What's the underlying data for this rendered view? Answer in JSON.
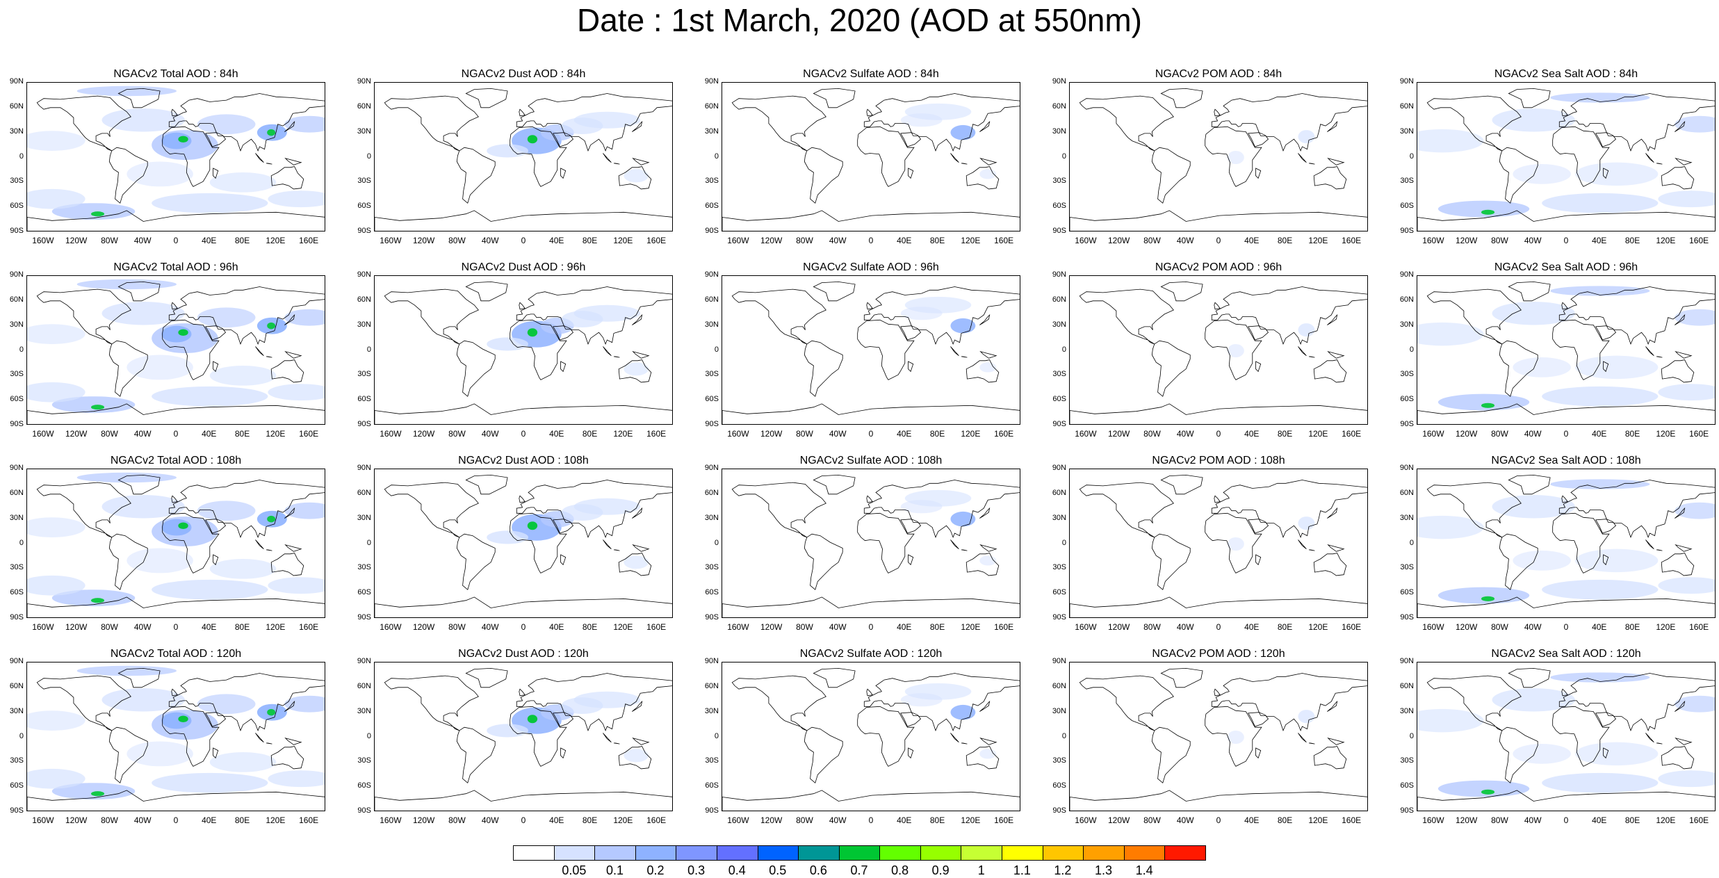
{
  "title": "Date : 1st March, 2020 (AOD at 550nm)",
  "lat_labels": [
    "90N",
    "60N",
    "30N",
    "0",
    "30S",
    "60S",
    "90S"
  ],
  "lon_labels": [
    "160W",
    "120W",
    "80W",
    "40W",
    "0",
    "40E",
    "80E",
    "120E",
    "160E"
  ],
  "panels": [
    {
      "title": "NGACv2 Total AOD : 84h",
      "species": "total"
    },
    {
      "title": "NGACv2 Dust AOD : 84h",
      "species": "dust"
    },
    {
      "title": "NGACv2 Sulfate AOD : 84h",
      "species": "sulfate"
    },
    {
      "title": "NGACv2 POM AOD : 84h",
      "species": "pom"
    },
    {
      "title": "NGACv2 Sea Salt AOD : 84h",
      "species": "seasalt"
    },
    {
      "title": "NGACv2 Total AOD : 96h",
      "species": "total"
    },
    {
      "title": "NGACv2 Dust AOD : 96h",
      "species": "dust"
    },
    {
      "title": "NGACv2 Sulfate AOD : 96h",
      "species": "sulfate"
    },
    {
      "title": "NGACv2 POM AOD : 96h",
      "species": "pom"
    },
    {
      "title": "NGACv2 Sea Salt AOD : 96h",
      "species": "seasalt"
    },
    {
      "title": "NGACv2 Total AOD : 108h",
      "species": "total"
    },
    {
      "title": "NGACv2 Dust AOD : 108h",
      "species": "dust"
    },
    {
      "title": "NGACv2 Sulfate AOD : 108h",
      "species": "sulfate"
    },
    {
      "title": "NGACv2 POM AOD : 108h",
      "species": "pom"
    },
    {
      "title": "NGACv2 Sea Salt AOD : 108h",
      "species": "seasalt"
    },
    {
      "title": "NGACv2 Total AOD : 120h",
      "species": "total"
    },
    {
      "title": "NGACv2 Dust AOD : 120h",
      "species": "dust"
    },
    {
      "title": "NGACv2 Sulfate AOD : 120h",
      "species": "sulfate"
    },
    {
      "title": "NGACv2 POM AOD : 120h",
      "species": "pom"
    },
    {
      "title": "NGACv2 Sea Salt  AOD : 120h",
      "species": "seasalt"
    }
  ],
  "colorbar": {
    "labels": [
      "0.05",
      "0.1",
      "0.2",
      "0.3",
      "0.4",
      "0.5",
      "0.6",
      "0.7",
      "0.8",
      "0.9",
      "1",
      "1.1",
      "1.2",
      "1.3",
      "1.4"
    ],
    "colors": [
      "#ffffff",
      "#d6e2ff",
      "#b5c9ff",
      "#8eb2ff",
      "#7f96ff",
      "#6370ff",
      "#0063ff",
      "#009696",
      "#00c633",
      "#63ff00",
      "#96ff00",
      "#c6ff33",
      "#ffff00",
      "#ffc600",
      "#ffa000",
      "#ff7c00",
      "#ff1900"
    ]
  }
}
